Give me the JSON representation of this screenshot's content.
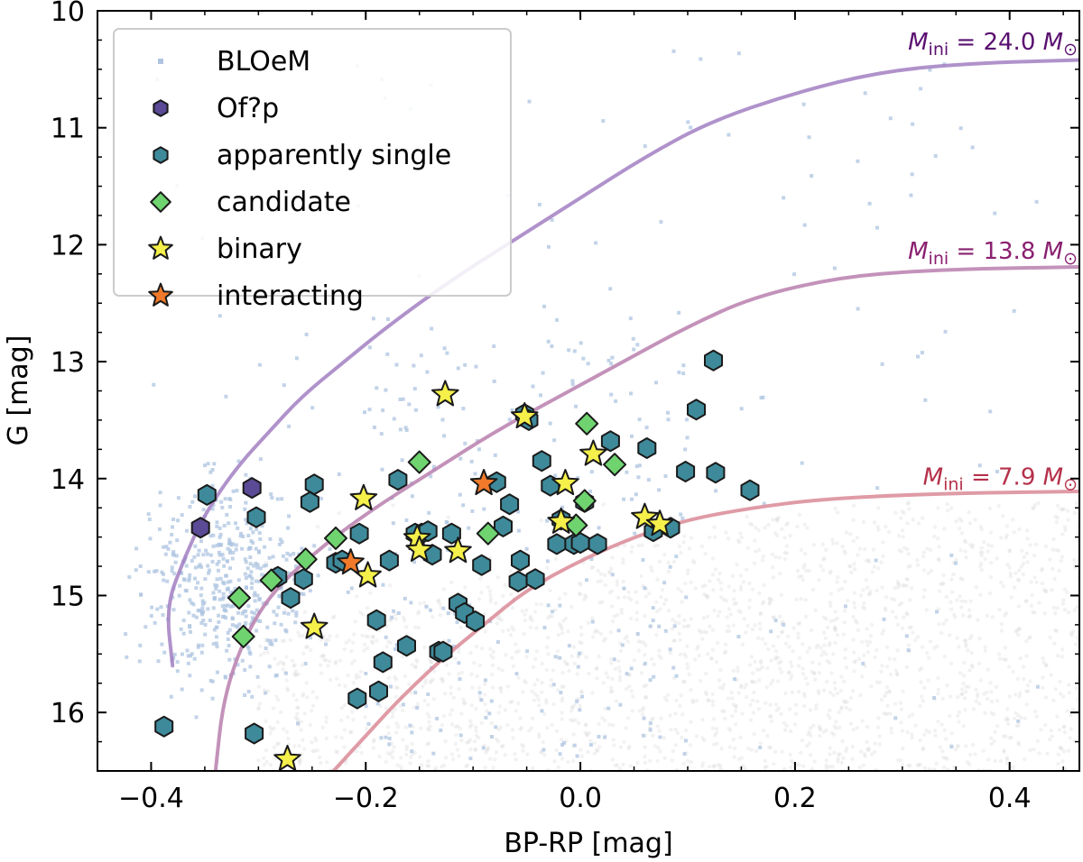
{
  "chart_data": {
    "type": "scatter",
    "xlabel": "BP-RP [mag]",
    "ylabel": "G [mag]",
    "xlim": [
      -0.45,
      0.465
    ],
    "ylim": [
      16.5,
      10.0
    ],
    "y_inverted": true,
    "x_ticks": [
      -0.4,
      -0.2,
      0.0,
      0.2,
      0.4
    ],
    "x_tick_labels": [
      "−0.4",
      "−0.2",
      "0.0",
      "0.2",
      "0.4"
    ],
    "y_ticks": [
      10,
      11,
      12,
      13,
      14,
      15,
      16
    ],
    "y_tick_labels": [
      "10",
      "11",
      "12",
      "13",
      "14",
      "15",
      "16"
    ],
    "grid": false,
    "legend_position": "top-left",
    "legend": [
      {
        "label": "BLOeM",
        "marker": "small-square",
        "color": "#aec4e0"
      },
      {
        "label": "Of?p",
        "marker": "hexagon",
        "color": "#5b4a96"
      },
      {
        "label": "apparently single",
        "marker": "hexagon",
        "color": "#3e8a9a"
      },
      {
        "label": "candidate",
        "marker": "diamond",
        "color": "#6fd46f"
      },
      {
        "label": "binary",
        "marker": "star",
        "color": "#f5f04a"
      },
      {
        "label": "interacting",
        "marker": "star",
        "color": "#f07a2a"
      }
    ],
    "colors": {
      "bloem": "#aec4e0",
      "background_field": "#d9d9d9",
      "ofp": "#5b4a96",
      "single": "#3e8a9a",
      "candidate": "#6fd46f",
      "binary": "#f5f04a",
      "interacting": "#f07a2a",
      "marker_edge": "#1a1a1a",
      "track_24": "#a27fc2",
      "track_13": "#b97fae",
      "track_8": "#d98a97",
      "label_24": "#5a1070",
      "label_13": "#8a2070",
      "label_8": "#b5304a"
    },
    "tracks": [
      {
        "mass_label": "M_ini = 24.0 M_sun",
        "prefix": "M",
        "sub": "ini",
        "eq": " = 24.0 ",
        "unit": "M",
        "sun": "⊙",
        "points": [
          [
            -0.38,
            15.6
          ],
          [
            -0.386,
            15.1
          ],
          [
            -0.37,
            14.7
          ],
          [
            -0.35,
            14.3
          ],
          [
            -0.32,
            13.9
          ],
          [
            -0.29,
            13.6
          ],
          [
            -0.26,
            13.3
          ],
          [
            -0.22,
            13.0
          ],
          [
            -0.18,
            12.7
          ],
          [
            -0.12,
            12.3
          ],
          [
            -0.06,
            11.95
          ],
          [
            0.0,
            11.6
          ],
          [
            0.06,
            11.25
          ],
          [
            0.12,
            10.95
          ],
          [
            0.2,
            10.7
          ],
          [
            0.28,
            10.52
          ],
          [
            0.36,
            10.45
          ],
          [
            0.465,
            10.42
          ]
        ]
      },
      {
        "mass_label": "M_ini = 13.8 M_sun",
        "prefix": "M",
        "sub": "ini",
        "eq": " = 13.8 ",
        "unit": "M",
        "sun": "⊙",
        "points": [
          [
            -0.34,
            16.5
          ],
          [
            -0.333,
            15.9
          ],
          [
            -0.315,
            15.4
          ],
          [
            -0.29,
            15.0
          ],
          [
            -0.25,
            14.65
          ],
          [
            -0.2,
            14.3
          ],
          [
            -0.14,
            13.95
          ],
          [
            -0.08,
            13.6
          ],
          [
            -0.02,
            13.3
          ],
          [
            0.04,
            13.0
          ],
          [
            0.1,
            12.7
          ],
          [
            0.16,
            12.45
          ],
          [
            0.24,
            12.28
          ],
          [
            0.32,
            12.22
          ],
          [
            0.4,
            12.2
          ],
          [
            0.465,
            12.19
          ]
        ]
      },
      {
        "mass_label": "M_ini = 7.9 M_sun",
        "prefix": "M",
        "sub": "ini",
        "eq": " =  7.9 ",
        "unit": "M",
        "sun": "⊙",
        "points": [
          [
            -0.23,
            16.5
          ],
          [
            -0.2,
            16.2
          ],
          [
            -0.17,
            15.9
          ],
          [
            -0.13,
            15.55
          ],
          [
            -0.09,
            15.25
          ],
          [
            -0.05,
            14.95
          ],
          [
            0.0,
            14.7
          ],
          [
            0.05,
            14.5
          ],
          [
            0.1,
            14.35
          ],
          [
            0.16,
            14.25
          ],
          [
            0.22,
            14.18
          ],
          [
            0.3,
            14.14
          ],
          [
            0.38,
            14.12
          ],
          [
            0.465,
            14.11
          ]
        ]
      }
    ],
    "series": [
      {
        "name": "Of?p",
        "marker": "hexagon",
        "x": [
          -0.354,
          -0.306
        ],
        "y": [
          14.42,
          14.08
        ]
      },
      {
        "name": "apparently single",
        "marker": "hexagon",
        "x": [
          -0.348,
          -0.302,
          -0.388,
          -0.304,
          -0.282,
          -0.27,
          -0.258,
          -0.252,
          -0.248,
          -0.228,
          -0.222,
          -0.208,
          -0.188,
          -0.184,
          -0.178,
          -0.17,
          -0.162,
          -0.148,
          -0.138,
          -0.132,
          -0.128,
          -0.12,
          -0.114,
          -0.108,
          -0.098,
          -0.092,
          -0.078,
          -0.072,
          -0.066,
          -0.058,
          -0.056,
          -0.052,
          -0.048,
          -0.042,
          -0.036,
          -0.028,
          -0.022,
          -0.018,
          -0.006,
          0.0,
          0.004,
          0.016,
          0.028,
          0.062,
          0.068,
          0.084,
          0.098,
          0.108,
          0.124,
          0.126,
          0.158,
          -0.19,
          -0.206,
          -0.154,
          -0.142
        ],
        "y": [
          14.14,
          14.33,
          16.12,
          16.18,
          14.84,
          15.02,
          14.86,
          14.2,
          14.05,
          14.72,
          14.7,
          15.88,
          15.82,
          15.57,
          14.7,
          14.01,
          15.43,
          14.47,
          14.65,
          15.48,
          15.48,
          14.47,
          15.07,
          15.15,
          15.22,
          14.74,
          14.03,
          14.41,
          14.22,
          14.88,
          14.7,
          13.45,
          13.5,
          14.86,
          13.85,
          14.06,
          14.56,
          14.35,
          14.56,
          14.55,
          14.2,
          14.56,
          13.68,
          13.74,
          14.45,
          14.42,
          13.94,
          13.41,
          12.99,
          13.95,
          14.1,
          15.21,
          14.47,
          14.47,
          14.45
        ]
      },
      {
        "name": "candidate",
        "marker": "diamond",
        "x": [
          -0.318,
          -0.314,
          -0.288,
          -0.256,
          -0.228,
          -0.15,
          -0.086,
          -0.004,
          0.004,
          0.006,
          0.032
        ],
        "y": [
          15.02,
          15.35,
          14.87,
          14.69,
          14.51,
          13.86,
          14.47,
          14.4,
          14.19,
          13.53,
          13.88
        ],
        "extra_note": ""
      },
      {
        "name": "binary",
        "marker": "star",
        "x": [
          -0.273,
          -0.248,
          -0.202,
          -0.198,
          -0.152,
          -0.15,
          -0.114,
          -0.126,
          -0.052,
          -0.018,
          -0.014,
          0.012,
          0.06,
          0.074
        ],
        "y": [
          16.4,
          15.27,
          14.17,
          14.83,
          14.51,
          14.61,
          14.62,
          13.28,
          13.47,
          14.37,
          14.04,
          13.79,
          14.33,
          14.39
        ]
      },
      {
        "name": "interacting",
        "marker": "star",
        "x": [
          -0.214,
          -0.09
        ],
        "y": [
          14.72,
          14.04
        ]
      }
    ]
  }
}
